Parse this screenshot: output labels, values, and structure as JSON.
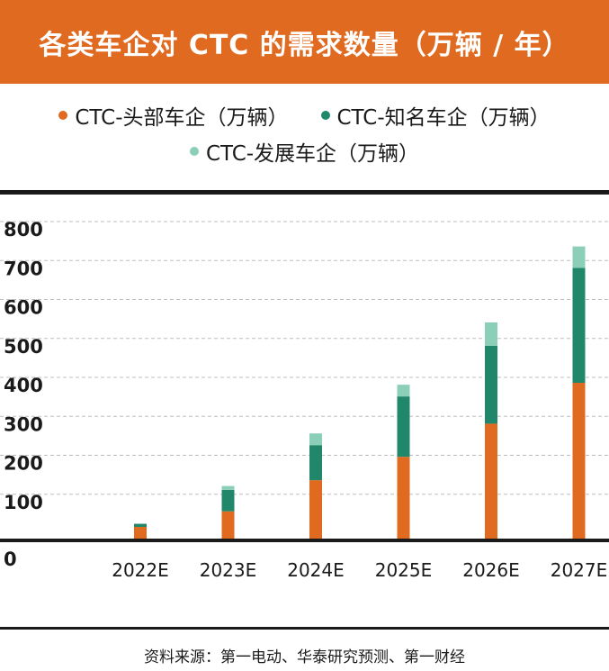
{
  "chart_data": {
    "type": "bar",
    "stacked": true,
    "title": "各类车企对 CTC 的需求数量（万辆 / 年）",
    "categories": [
      "2022E",
      "2023E",
      "2024E",
      "2025E",
      "2026E",
      "2027E"
    ],
    "series": [
      {
        "name": "CTC-头部车企（万辆）",
        "values": [
          30,
          70,
          150,
          210,
          295,
          400
        ],
        "color": "#e06a1f"
      },
      {
        "name": "CTC-知名车企（万辆）",
        "values": [
          8,
          55,
          90,
          155,
          200,
          295
        ],
        "color": "#21876a"
      },
      {
        "name": "CTC-发展车企（万辆）",
        "values": [
          0,
          10,
          30,
          30,
          60,
          55
        ],
        "color": "#8ccfb9"
      }
    ],
    "yticks": [
      0,
      100,
      200,
      300,
      400,
      500,
      600,
      700,
      800
    ],
    "ylim": [
      0,
      800
    ],
    "grid": true,
    "legend_position": "top"
  },
  "source": "资料来源：第一电动、华泰研究预测、第一财经"
}
